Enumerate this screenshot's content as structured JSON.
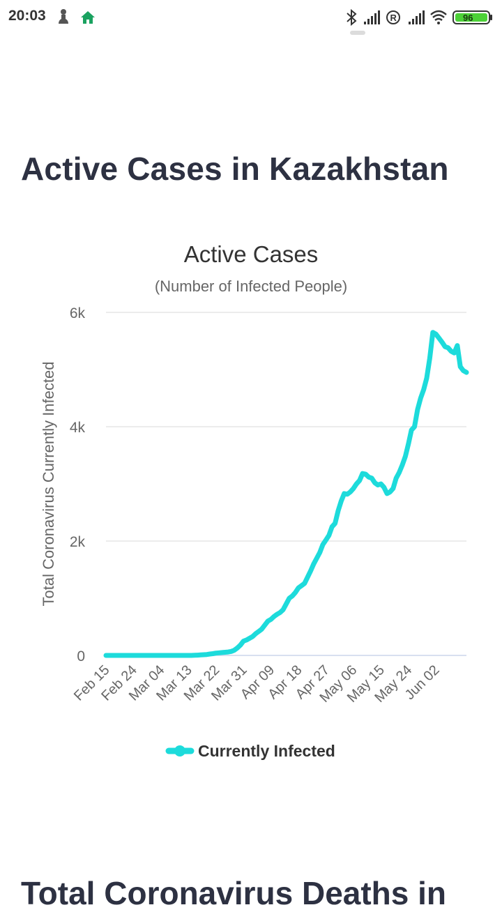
{
  "status_bar": {
    "time": "20:03",
    "battery": "96",
    "icons": [
      "person-icon",
      "home-icon",
      "bluetooth-icon",
      "signal-icon",
      "roaming-icon",
      "signal-icon",
      "wifi-icon",
      "battery-icon"
    ],
    "colors": {
      "battery_fill": "#4cd137",
      "home": "#1aa260"
    }
  },
  "page": {
    "title": "Active Cases in Kazakhstan",
    "next_title": "Total Coronavirus Deaths in"
  },
  "chart_data": {
    "type": "line",
    "title": "Active Cases",
    "subtitle": "(Number of Infected People)",
    "xlabel": "",
    "ylabel": "Total Coronavirus Currently Infected",
    "x_tick_labels": [
      "Feb 15",
      "Feb 24",
      "Mar 04",
      "Mar 13",
      "Mar 22",
      "Mar 31",
      "Apr 09",
      "Apr 18",
      "Apr 27",
      "May 06",
      "May 15",
      "May 24",
      "Jun 02"
    ],
    "y_ticks": [
      0,
      2000,
      4000,
      6000
    ],
    "y_tick_labels": [
      "0",
      "2k",
      "4k",
      "6k"
    ],
    "ylim": [
      0,
      6000
    ],
    "grid": true,
    "legend_position": "bottom",
    "series": [
      {
        "name": "Currently Infected",
        "color": "#1ddbdb",
        "x_start": "Feb 15",
        "values": [
          0,
          0,
          0,
          0,
          0,
          0,
          0,
          0,
          0,
          0,
          0,
          0,
          0,
          0,
          0,
          0,
          0,
          0,
          0,
          0,
          0,
          0,
          0,
          0,
          0,
          0,
          0,
          0,
          0,
          2,
          5,
          9,
          12,
          16,
          25,
          30,
          40,
          45,
          50,
          55,
          60,
          70,
          90,
          130,
          180,
          250,
          270,
          300,
          330,
          380,
          420,
          460,
          530,
          600,
          630,
          680,
          720,
          750,
          800,
          900,
          1000,
          1040,
          1100,
          1180,
          1220,
          1260,
          1370,
          1480,
          1600,
          1700,
          1800,
          1940,
          2020,
          2100,
          2250,
          2310,
          2530,
          2700,
          2830,
          2820,
          2860,
          2920,
          3000,
          3060,
          3180,
          3170,
          3120,
          3100,
          3020,
          2980,
          3000,
          2940,
          2830,
          2860,
          2920,
          3100,
          3200,
          3330,
          3480,
          3700,
          3940,
          4000,
          4300,
          4500,
          4650,
          4850,
          5200,
          5650,
          5620,
          5550,
          5480,
          5400,
          5380,
          5320,
          5290,
          5420,
          5050,
          4980,
          4950
        ]
      }
    ]
  }
}
